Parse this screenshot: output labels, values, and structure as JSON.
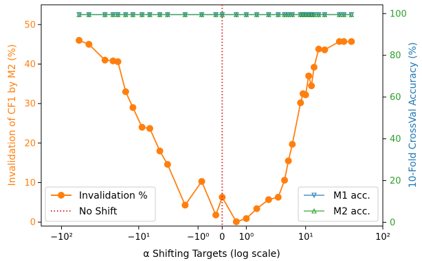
{
  "chart_data": {
    "type": "line",
    "title": "",
    "xlabel": "α Shifting Targets (log scale)",
    "xscale": "symlog",
    "xlim": [
      -180,
      100
    ],
    "x_ticks": [
      {
        "value": -100,
        "label": "−10²"
      },
      {
        "value": -10,
        "label": "−10¹"
      },
      {
        "value": -1,
        "label": "−10⁰"
      },
      {
        "value": 0,
        "label": "0"
      },
      {
        "value": 1,
        "label": "10⁰"
      },
      {
        "value": 10,
        "label": "10¹"
      },
      {
        "value": 100,
        "label": "10²"
      }
    ],
    "left_axis": {
      "label": "Invalidation of CF1 by M2 (%)",
      "color": "#ff7f0e",
      "ylim": [
        -1,
        55
      ],
      "ticks": [
        0,
        10,
        20,
        30,
        40,
        50
      ]
    },
    "right_axis": {
      "label": "10-Fold CrossVal Accuracy (%)",
      "color": "#1f77b4",
      "tick_color": "#2ca02c",
      "ylim": [
        -1.8,
        104.2
      ],
      "ticks": [
        0,
        20,
        40,
        60,
        80,
        100
      ]
    },
    "series": [
      {
        "name": "Invalidation %",
        "axis": "left",
        "color": "#ff7f0e",
        "marker": "circle",
        "x": [
          -60,
          -45,
          -28,
          -22,
          -19,
          -15,
          -12,
          -9,
          -7,
          -5,
          -3.8,
          -1.9,
          -0.8,
          -0.2,
          0,
          0.5,
          1,
          1.7,
          2.8,
          4,
          5,
          5.7,
          6.5,
          8.5,
          9.2,
          10,
          11,
          12,
          13,
          15,
          18,
          28,
          32,
          40
        ],
        "y": [
          46,
          45,
          41,
          40.8,
          40.6,
          33,
          29,
          24,
          23.7,
          18,
          14.6,
          4.3,
          10.3,
          1.8,
          6.3,
          0.1,
          0.9,
          3.4,
          5.7,
          6.3,
          10.6,
          15.5,
          19.7,
          30.2,
          32.5,
          32.2,
          37,
          34.5,
          39.2,
          43.8,
          43.6,
          45.7,
          45.7,
          45.7
        ],
        "y_note": ""
      },
      {
        "name": "No Shift",
        "axis": "left",
        "color": "#d62728",
        "style": "dotted",
        "x_const": 0
      },
      {
        "name": "M1 acc.",
        "axis": "right",
        "color": "#1f77b4",
        "marker": "tri_down",
        "values_x": [
          -60,
          -45,
          -28,
          -22,
          -19,
          -15,
          -12,
          -9,
          -7,
          -5,
          -3.8,
          -1.9,
          -0.8,
          -0.2,
          0,
          0.5,
          1,
          1.7,
          2.8,
          4,
          5,
          5.7,
          6.5,
          8.5,
          9.2,
          10,
          11,
          12,
          13,
          15,
          18,
          28,
          32,
          40
        ],
        "value": 99.5
      },
      {
        "name": "M2 acc.",
        "axis": "right",
        "color": "#2ca02c",
        "marker": "tri_up",
        "values_x": [
          -60,
          -45,
          -28,
          -22,
          -19,
          -15,
          -12,
          -9,
          -7,
          -5,
          -3.8,
          -1.9,
          -0.8,
          -0.2,
          0,
          0.5,
          1,
          1.7,
          2.8,
          4,
          5,
          5.7,
          6.5,
          8.5,
          9.2,
          10,
          11,
          12,
          13,
          15,
          18,
          28,
          32,
          40
        ],
        "value": 99.5
      }
    ],
    "legends": [
      {
        "placement": "lower-left",
        "entries": [
          "Invalidation %",
          "No Shift"
        ]
      },
      {
        "placement": "lower-right",
        "entries": [
          "M1 acc.",
          "M2 acc."
        ]
      }
    ],
    "grid": false
  },
  "labels": {
    "xlabel": "α Shifting Targets (log scale)",
    "ylabel_left": "Invalidation of CF1 by M2 (%)",
    "ylabel_right": "10-Fold CrossVal Accuracy (%)",
    "legend_invalidation": "Invalidation %",
    "legend_noshift": "No Shift",
    "legend_m1": "M1 acc.",
    "legend_m2": "M2 acc."
  }
}
